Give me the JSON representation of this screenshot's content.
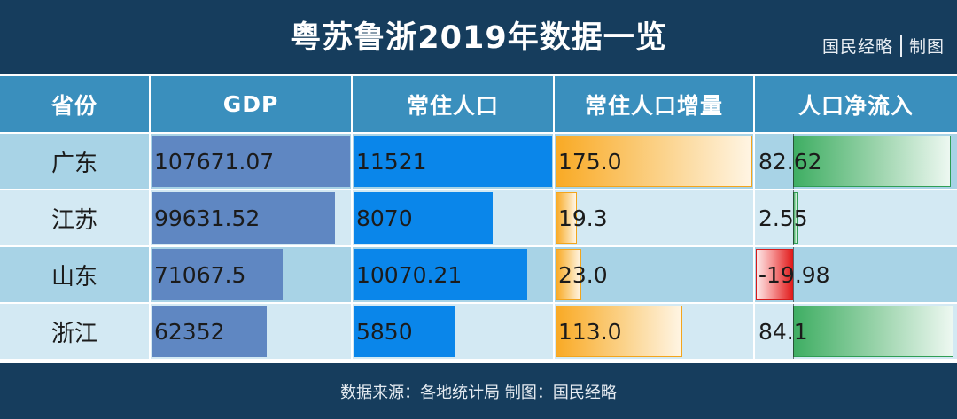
{
  "title": "粤苏鲁浙2019年数据一览",
  "brand": {
    "name": "国民经略",
    "tag": "制图"
  },
  "footer": "数据来源：各地统计局 制图：国民经略",
  "colors": {
    "header_bg": "#163d5d",
    "column_header_bg": "#3a8fbd",
    "row_dark": "#a8d3e6",
    "row_light": "#d3e9f3",
    "gdp_bar": "#5f87c2",
    "population_bar": "#0a86ea",
    "increase_bar": "#f9aa25",
    "inflow_positive": "#3fae63",
    "inflow_negative": "#e11d1d"
  },
  "chart_data": {
    "type": "table",
    "columns": [
      "省份",
      "GDP",
      "常住人口",
      "常住人口增量",
      "人口净流入"
    ],
    "rows": [
      {
        "province": "广东",
        "gdp": "107671.07",
        "population": "11521",
        "increase": "175.0",
        "inflow": "82.62"
      },
      {
        "province": "江苏",
        "gdp": "99631.52",
        "population": "8070",
        "increase": "19.3",
        "inflow": "2.55"
      },
      {
        "province": "山东",
        "gdp": "71067.5",
        "population": "10070.21",
        "increase": "23.0",
        "inflow": "-19.98"
      },
      {
        "province": "浙江",
        "gdp": "62352",
        "population": "5850",
        "increase": "113.0",
        "inflow": "84.1"
      }
    ]
  }
}
